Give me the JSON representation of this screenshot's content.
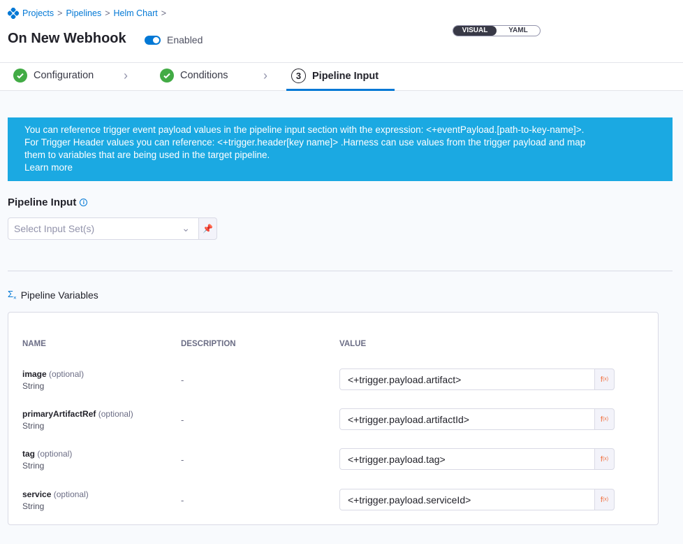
{
  "breadcrumbs": [
    "Projects",
    "Pipelines",
    "Helm Chart"
  ],
  "title": "On New Webhook",
  "enabled_label": "Enabled",
  "enabled": true,
  "view_toggle": {
    "visual": "VISUAL",
    "yaml": "YAML",
    "selected": "VISUAL"
  },
  "steps": [
    {
      "label": "Configuration",
      "status": "done"
    },
    {
      "label": "Conditions",
      "status": "done"
    },
    {
      "label": "Pipeline Input",
      "number": "3",
      "status": "active"
    }
  ],
  "banner": {
    "line1": "You can reference trigger event payload values in the pipeline input section with the expression: <+eventPayload.[path-to-key-name]>.",
    "line2": "For Trigger Header values you can reference: <+trigger.header[key name]> .Harness can use values from the trigger payload and map",
    "line3": "them to variables that are being used in the target pipeline.",
    "learn_more": "Learn more"
  },
  "pipeline_input": {
    "title": "Pipeline Input",
    "placeholder": "Select Input Set(s)"
  },
  "variables": {
    "title": "Pipeline Variables",
    "columns": [
      "NAME",
      "DESCRIPTION",
      "VALUE"
    ],
    "rows": [
      {
        "name": "image",
        "optional": "(optional)",
        "type": "String",
        "description": "-",
        "value": "<+trigger.payload.artifact>"
      },
      {
        "name": "primaryArtifactRef",
        "optional": "(optional)",
        "type": "String",
        "description": "-",
        "value": "<+trigger.payload.artifactId>"
      },
      {
        "name": "tag",
        "optional": "(optional)",
        "type": "String",
        "description": "-",
        "value": "<+trigger.payload.tag>"
      },
      {
        "name": "service",
        "optional": "(optional)",
        "type": "String",
        "description": "-",
        "value": "<+trigger.payload.serviceId>"
      }
    ]
  },
  "colors": {
    "accent": "#0278d5",
    "banner": "#1ba9e2",
    "success": "#42ab45",
    "expression": "#f16e3c"
  }
}
